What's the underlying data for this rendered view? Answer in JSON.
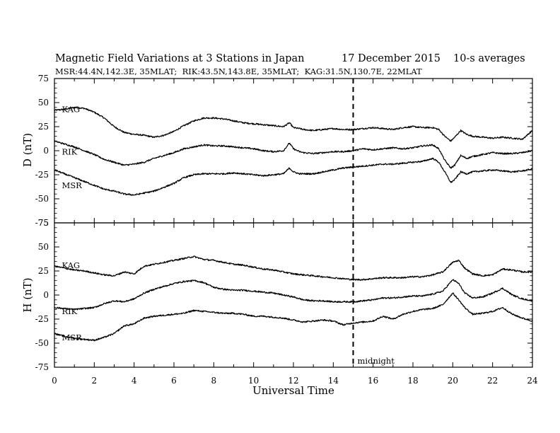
{
  "chart_data": {
    "type": "line",
    "title": "Magnetic Field Variations at 3 Stations in Japan",
    "date": "17 December 2015",
    "averaging": "10-s averages",
    "subtitle": "MSR:44.4N,142.3E, 35MLAT;  RIK:43.5N,143.8E, 35MLAT;  KAG:31.5N,130.7E, 22MLAT",
    "xlabel": "Universal Time",
    "xlim": [
      0,
      24
    ],
    "x_ticks": [
      "0",
      "2",
      "4",
      "6",
      "8",
      "10",
      "12",
      "14",
      "16",
      "18",
      "20",
      "22",
      "24"
    ],
    "midnight_ut": 15,
    "midnight_label": "midnight",
    "panels": [
      {
        "ylabel": "D (nT)",
        "ylim": [
          -75,
          75
        ],
        "y_ticks": [
          "75",
          "50",
          "25",
          "0",
          "-25",
          "-50",
          "-75"
        ],
        "series": [
          {
            "name": "KAG",
            "label_at": [
              0.3,
              43
            ],
            "x": [
              0,
              0.5,
              1,
              1.5,
              2,
              2.5,
              3,
              3.5,
              4,
              4.5,
              5,
              5.5,
              6,
              6.5,
              7,
              7.5,
              8,
              8.5,
              9,
              9.5,
              10,
              10.5,
              11,
              11.5,
              11.8,
              12,
              12.3,
              12.5,
              13,
              13.5,
              14,
              14.5,
              15,
              15.5,
              16,
              16.5,
              17,
              17.5,
              18,
              18.5,
              19,
              19.3,
              19.6,
              19.9,
              20.1,
              20.4,
              20.7,
              21,
              21.5,
              22,
              22.5,
              23,
              23.5,
              24
            ],
            "values": [
              42,
              43,
              45,
              44,
              40,
              34,
              25,
              19,
              17,
              16,
              14,
              16,
              20,
              26,
              31,
              34,
              34,
              33,
              31,
              29,
              28,
              27,
              26,
              25,
              29,
              24,
              23,
              22,
              21,
              22,
              23,
              22,
              22,
              23,
              24,
              23,
              22,
              24,
              25,
              24,
              24,
              22,
              15,
              10,
              14,
              21,
              17,
              15,
              14,
              13,
              14,
              13,
              12,
              21
            ]
          },
          {
            "name": "RIK",
            "label_at": [
              0.3,
              -1
            ],
            "x": [
              0,
              0.5,
              1,
              1.5,
              2,
              2.5,
              3,
              3.5,
              4,
              4.5,
              5,
              5.5,
              6,
              6.5,
              7,
              7.5,
              8,
              8.5,
              9,
              9.5,
              10,
              10.5,
              11,
              11.5,
              11.8,
              12,
              12.3,
              12.5,
              13,
              13.5,
              14,
              14.5,
              15,
              15.5,
              16,
              16.5,
              17,
              17.5,
              18,
              18.5,
              19,
              19.3,
              19.6,
              19.9,
              20.1,
              20.4,
              20.7,
              21,
              21.5,
              22,
              22.5,
              23,
              23.5,
              24
            ],
            "values": [
              10,
              7,
              4,
              0,
              -4,
              -9,
              -12,
              -15,
              -14,
              -12,
              -8,
              -5,
              -2,
              2,
              4,
              6,
              5,
              5,
              4,
              3,
              2,
              0,
              -1,
              0,
              8,
              2,
              -1,
              -2,
              -3,
              -2,
              -1,
              -1,
              0,
              2,
              1,
              2,
              3,
              2,
              3,
              5,
              6,
              2,
              -10,
              -18,
              -15,
              -5,
              -8,
              -6,
              -4,
              -2,
              -3,
              -3,
              -2,
              0
            ]
          },
          {
            "name": "MSR",
            "label_at": [
              0.3,
              -36
            ],
            "x": [
              0,
              0.5,
              1,
              1.5,
              2,
              2.5,
              3,
              3.5,
              4,
              4.5,
              5,
              5.5,
              6,
              6.5,
              7,
              7.5,
              8,
              8.5,
              9,
              9.5,
              10,
              10.5,
              11,
              11.5,
              11.8,
              12,
              12.3,
              12.5,
              13,
              13.5,
              14,
              14.5,
              15,
              15.5,
              16,
              16.5,
              17,
              17.5,
              18,
              18.5,
              19,
              19.3,
              19.6,
              19.9,
              20.1,
              20.4,
              20.7,
              21,
              21.5,
              22,
              22.5,
              23,
              23.5,
              24
            ],
            "values": [
              -20,
              -24,
              -28,
              -32,
              -36,
              -40,
              -42,
              -45,
              -46,
              -44,
              -42,
              -38,
              -34,
              -28,
              -25,
              -24,
              -24,
              -24,
              -23,
              -24,
              -25,
              -26,
              -25,
              -24,
              -18,
              -22,
              -24,
              -24,
              -24,
              -22,
              -20,
              -18,
              -17,
              -16,
              -15,
              -14,
              -14,
              -13,
              -12,
              -11,
              -8,
              -12,
              -22,
              -33,
              -30,
              -22,
              -24,
              -22,
              -21,
              -20,
              -21,
              -22,
              -21,
              -19
            ]
          }
        ]
      },
      {
        "ylabel": "H (nT)",
        "ylim": [
          -75,
          75
        ],
        "y_ticks": [
          "75",
          "50",
          "25",
          "0",
          "-25",
          "-50",
          "-75"
        ],
        "series": [
          {
            "name": "KAG",
            "label_at": [
              0.3,
              31
            ],
            "x": [
              0,
              0.5,
              1,
              1.5,
              2,
              2.5,
              3,
              3.5,
              4,
              4.5,
              5,
              5.5,
              6,
              6.5,
              7,
              7.5,
              8,
              8.5,
              9,
              9.5,
              10,
              10.5,
              11,
              11.5,
              12,
              12.5,
              13,
              13.5,
              14,
              14.5,
              15,
              15.5,
              16,
              16.5,
              17,
              17.5,
              18,
              18.5,
              19,
              19.5,
              20,
              20.3,
              20.6,
              21,
              21.5,
              22,
              22.5,
              23,
              23.5,
              24
            ],
            "values": [
              30,
              28,
              26,
              25,
              23,
              21,
              20,
              24,
              22,
              30,
              32,
              34,
              36,
              38,
              40,
              37,
              36,
              34,
              32,
              31,
              29,
              27,
              26,
              24,
              22,
              21,
              20,
              19,
              18,
              17,
              16,
              16,
              17,
              18,
              18,
              18,
              19,
              19,
              21,
              24,
              34,
              36,
              28,
              22,
              20,
              21,
              27,
              26,
              24,
              24
            ]
          },
          {
            "name": "RIK",
            "label_at": [
              0.3,
              -17
            ],
            "x": [
              0,
              0.5,
              1,
              1.5,
              2,
              2.5,
              3,
              3.5,
              4,
              4.5,
              5,
              5.5,
              6,
              6.5,
              7,
              7.5,
              8,
              8.5,
              9,
              9.5,
              10,
              10.5,
              11,
              11.5,
              12,
              12.5,
              13,
              13.5,
              14,
              14.5,
              15,
              15.5,
              16,
              16.5,
              17,
              17.5,
              18,
              18.5,
              19,
              19.5,
              20,
              20.3,
              20.6,
              21,
              21.5,
              22,
              22.5,
              23,
              23.5,
              24
            ],
            "values": [
              -13,
              -14,
              -15,
              -14,
              -13,
              -9,
              -6,
              -7,
              -4,
              2,
              6,
              9,
              12,
              14,
              15,
              13,
              8,
              6,
              5,
              5,
              4,
              3,
              2,
              0,
              -2,
              -5,
              -6,
              -6,
              -7,
              -7,
              -7,
              -6,
              -5,
              -3,
              -3,
              -2,
              -1,
              -1,
              1,
              4,
              16,
              12,
              2,
              -3,
              -2,
              2,
              7,
              0,
              -4,
              -6
            ]
          },
          {
            "name": "MSR",
            "label_at": [
              0.3,
              -44
            ],
            "x": [
              0,
              0.5,
              1,
              1.5,
              2,
              2.5,
              3,
              3.5,
              4,
              4.5,
              5,
              5.5,
              6,
              6.5,
              7,
              7.5,
              8,
              8.5,
              9,
              9.5,
              10,
              10.5,
              11,
              11.5,
              12,
              12.5,
              13,
              13.5,
              14,
              14.5,
              15,
              15.5,
              16,
              16.5,
              17,
              17.5,
              18,
              18.5,
              19,
              19.5,
              20,
              20.3,
              20.6,
              21,
              21.5,
              22,
              22.5,
              23,
              23.5,
              24
            ],
            "values": [
              -40,
              -43,
              -45,
              -46,
              -47,
              -44,
              -40,
              -32,
              -30,
              -24,
              -22,
              -21,
              -20,
              -19,
              -16,
              -17,
              -18,
              -19,
              -19,
              -20,
              -22,
              -22,
              -23,
              -24,
              -26,
              -28,
              -27,
              -26,
              -27,
              -31,
              -29,
              -28,
              -27,
              -22,
              -25,
              -20,
              -17,
              -15,
              -14,
              -10,
              2,
              -5,
              -13,
              -20,
              -19,
              -17,
              -13,
              -20,
              -24,
              -27
            ]
          }
        ]
      }
    ]
  }
}
